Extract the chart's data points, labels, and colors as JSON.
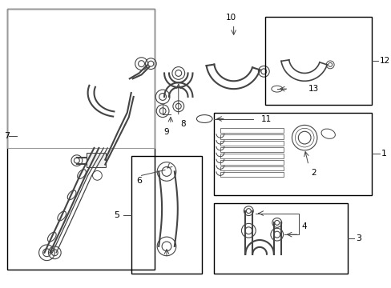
{
  "background_color": "#ffffff",
  "border_color": "#000000",
  "line_color": "#444444",
  "text_color": "#000000",
  "fig_width": 4.89,
  "fig_height": 3.6,
  "dpi": 100
}
